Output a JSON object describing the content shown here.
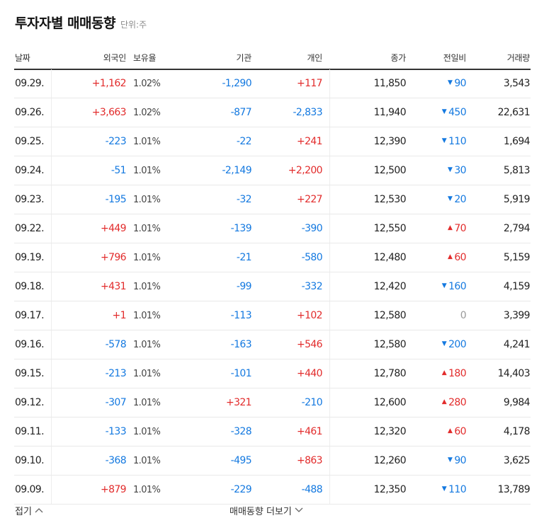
{
  "header": {
    "title": "투자자별 매매동향",
    "unit": "단위:주"
  },
  "columns": {
    "date": "날짜",
    "foreign": "외국인",
    "ratio": "보유율",
    "institution": "기관",
    "individual": "개인",
    "close": "종가",
    "change": "전일비",
    "volume": "거래량"
  },
  "rows": [
    {
      "date": "09.29.",
      "foreign": "+1,162",
      "ratio": "1.02%",
      "institution": "-1,290",
      "individual": "+117",
      "close": "11,850",
      "change_dir": "down",
      "change": "90",
      "volume": "3,543"
    },
    {
      "date": "09.26.",
      "foreign": "+3,663",
      "ratio": "1.02%",
      "institution": "-877",
      "individual": "-2,833",
      "close": "11,940",
      "change_dir": "down",
      "change": "450",
      "volume": "22,631"
    },
    {
      "date": "09.25.",
      "foreign": "-223",
      "ratio": "1.01%",
      "institution": "-22",
      "individual": "+241",
      "close": "12,390",
      "change_dir": "down",
      "change": "110",
      "volume": "1,694"
    },
    {
      "date": "09.24.",
      "foreign": "-51",
      "ratio": "1.01%",
      "institution": "-2,149",
      "individual": "+2,200",
      "close": "12,500",
      "change_dir": "down",
      "change": "30",
      "volume": "5,813"
    },
    {
      "date": "09.23.",
      "foreign": "-195",
      "ratio": "1.01%",
      "institution": "-32",
      "individual": "+227",
      "close": "12,530",
      "change_dir": "down",
      "change": "20",
      "volume": "5,919"
    },
    {
      "date": "09.22.",
      "foreign": "+449",
      "ratio": "1.01%",
      "institution": "-139",
      "individual": "-390",
      "close": "12,550",
      "change_dir": "up",
      "change": "70",
      "volume": "2,794"
    },
    {
      "date": "09.19.",
      "foreign": "+796",
      "ratio": "1.01%",
      "institution": "-21",
      "individual": "-580",
      "close": "12,480",
      "change_dir": "up",
      "change": "60",
      "volume": "5,159"
    },
    {
      "date": "09.18.",
      "foreign": "+431",
      "ratio": "1.01%",
      "institution": "-99",
      "individual": "-332",
      "close": "12,420",
      "change_dir": "down",
      "change": "160",
      "volume": "4,159"
    },
    {
      "date": "09.17.",
      "foreign": "+1",
      "ratio": "1.01%",
      "institution": "-113",
      "individual": "+102",
      "close": "12,580",
      "change_dir": "none",
      "change": "0",
      "volume": "3,399"
    },
    {
      "date": "09.16.",
      "foreign": "-578",
      "ratio": "1.01%",
      "institution": "-163",
      "individual": "+546",
      "close": "12,580",
      "change_dir": "down",
      "change": "200",
      "volume": "4,241"
    },
    {
      "date": "09.15.",
      "foreign": "-213",
      "ratio": "1.01%",
      "institution": "-101",
      "individual": "+440",
      "close": "12,780",
      "change_dir": "up",
      "change": "180",
      "volume": "14,403"
    },
    {
      "date": "09.12.",
      "foreign": "-307",
      "ratio": "1.01%",
      "institution": "+321",
      "individual": "-210",
      "close": "12,600",
      "change_dir": "up",
      "change": "280",
      "volume": "9,984"
    },
    {
      "date": "09.11.",
      "foreign": "-133",
      "ratio": "1.01%",
      "institution": "-328",
      "individual": "+461",
      "close": "12,320",
      "change_dir": "up",
      "change": "60",
      "volume": "4,178"
    },
    {
      "date": "09.10.",
      "foreign": "-368",
      "ratio": "1.01%",
      "institution": "-495",
      "individual": "+863",
      "close": "12,260",
      "change_dir": "down",
      "change": "90",
      "volume": "3,625"
    },
    {
      "date": "09.09.",
      "foreign": "+879",
      "ratio": "1.01%",
      "institution": "-229",
      "individual": "-488",
      "close": "12,350",
      "change_dir": "down",
      "change": "110",
      "volume": "13,789"
    }
  ],
  "footer": {
    "fold_label": "접기",
    "more_label": "매매동향 더보기"
  },
  "colors": {
    "up": "#e22b2b",
    "down": "#1479e0",
    "neutral": "#999999"
  },
  "icons": {
    "fold": "chevron-up-icon",
    "more": "chevron-down-icon",
    "up": "triangle-up-icon",
    "down": "triangle-down-icon"
  }
}
